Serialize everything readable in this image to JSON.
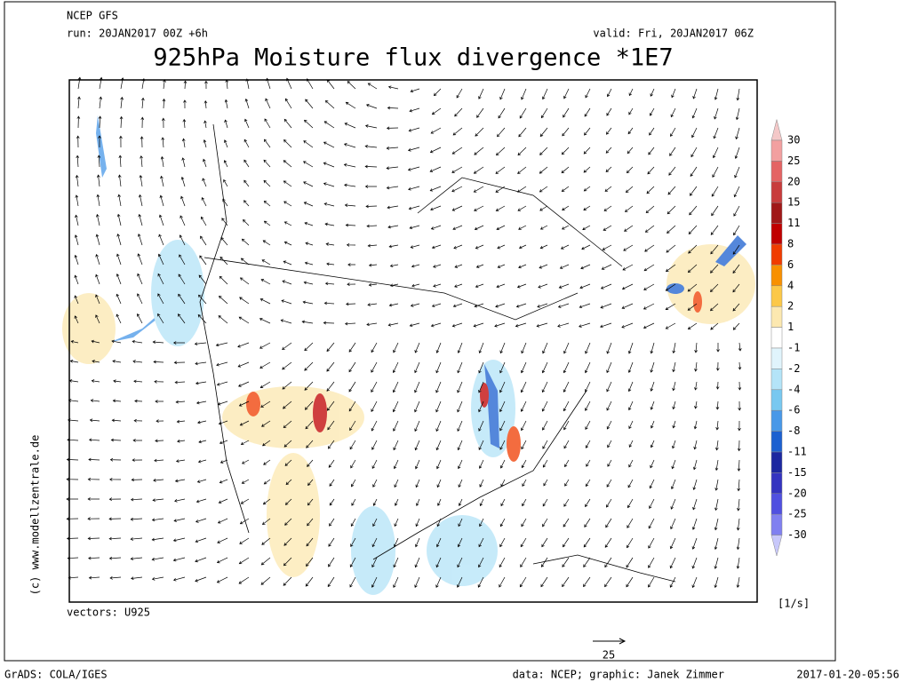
{
  "header": {
    "model": "NCEP GFS",
    "run": "run: 20JAN2017 00Z +6h",
    "valid": "valid: Fri, 20JAN2017 06Z",
    "title": "925hPa Moisture flux divergence *1E7"
  },
  "map": {
    "vectors_label": "vectors: U925",
    "reference_vector": "25",
    "watermark": "(c) www.modellzentrale.de"
  },
  "legend": {
    "levels": [
      30,
      25,
      20,
      15,
      11,
      8,
      6,
      4,
      2,
      1,
      -1,
      -2,
      -4,
      -6,
      -8,
      -11,
      -15,
      -20,
      -25,
      -30
    ],
    "colors": [
      "#f4c8c8",
      "#f2a0a0",
      "#e46464",
      "#c83c3c",
      "#a01818",
      "#c00000",
      "#f03c00",
      "#f89000",
      "#fcc848",
      "#fce8b0",
      "#ffffff",
      "#e0f4fc",
      "#b4e4f8",
      "#78c8f0",
      "#4898e8",
      "#1c60d0",
      "#1c28a0",
      "#3434c0",
      "#5050e0",
      "#8080f0",
      "#c8c8fa"
    ],
    "unit": "[1/s]"
  },
  "footer": {
    "left": "GrADS: COLA/IGES",
    "center": "data: NCEP; graphic: Janek Zimmer",
    "right": "2017-01-20-05:56"
  }
}
